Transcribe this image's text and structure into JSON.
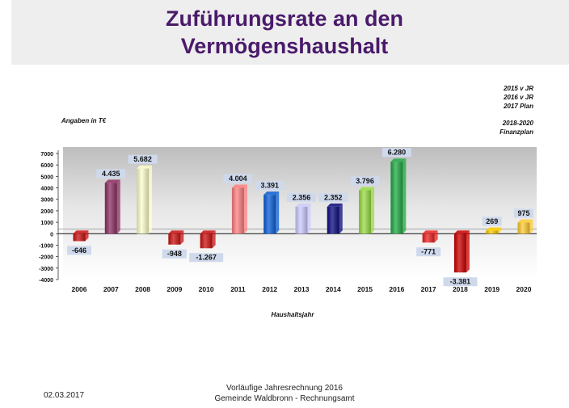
{
  "header": {
    "title_line1": "Zuführungsrate an den",
    "title_line2": "Vermögenshaushalt"
  },
  "notes": {
    "units": "Angaben in T€",
    "legend_lines": [
      "2015 v JR",
      "2016 v JR",
      "2017 Plan"
    ],
    "legend_lines2": [
      "2018-2020",
      "Finanzplan"
    ]
  },
  "footer": {
    "date": "02.03.2017",
    "line1": "Vorläufige Jahresrechnung 2016",
    "line2": "Gemeinde Waldbronn - Rechnungsamt"
  },
  "chart_data": {
    "type": "bar",
    "title": "",
    "xlabel": "Haushaltsjahr",
    "ylabel": "",
    "ylim": [
      -4000,
      7000
    ],
    "yticks": [
      7000,
      6000,
      5000,
      4000,
      3000,
      2000,
      1000,
      0,
      -1000,
      -2000,
      -3000,
      -4000
    ],
    "categories": [
      "2006",
      "2007",
      "2008",
      "2009",
      "2010",
      "2011",
      "2012",
      "2013",
      "2014",
      "2015",
      "2016",
      "2017",
      "2018",
      "2019",
      "2020"
    ],
    "values": [
      -646,
      4435,
      5682,
      -948,
      -1267,
      4004,
      3391,
      2356,
      2352,
      3796,
      6280,
      -771,
      -3381,
      269,
      975
    ],
    "value_labels": [
      "-646",
      "4.435",
      "5.682",
      "-948",
      "-1.267",
      "4.004",
      "3.391",
      "2.356",
      "2.352",
      "3.796",
      "6.280",
      "-771",
      "-3.381",
      "269",
      "975"
    ],
    "colors": [
      "#cc1111",
      "#8e2f63",
      "#ffffcc",
      "#cc1111",
      "#cc1111",
      "#ff8080",
      "#0a5fd8",
      "#ccccff",
      "#0b0b80",
      "#99dd44",
      "#22aa44",
      "#ee2222",
      "#cc0000",
      "#ffcc00",
      "#ffcc33"
    ],
    "grid": false,
    "legend": "none"
  }
}
